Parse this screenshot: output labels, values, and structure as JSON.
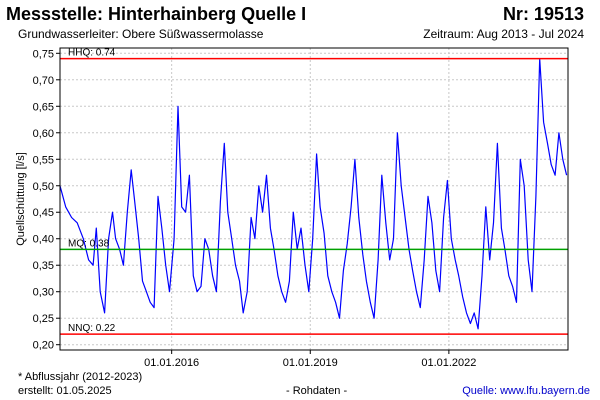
{
  "header": {
    "station": "Messstelle: Hinterhainberg Quelle I",
    "number": "Nr: 19513",
    "aquifer": "Grundwasserleiter:   Obere Süßwassermolasse",
    "period": "Zeitraum: Aug 2013 - Jul 2024"
  },
  "footer": {
    "note": "* Abflussjahr (2012-2023)",
    "created": "erstellt:  01.05.2025",
    "raw": "- Rohdaten -",
    "source": "Quelle: www.lfu.bayern.de"
  },
  "colors": {
    "series": "#0000ff",
    "hhq": "#ff0000",
    "mq": "#00a000",
    "nnq": "#ff0000",
    "grid": "#c8c8c8"
  },
  "chart_data": {
    "type": "line",
    "ylabel": "Quellschüttung [l/s]",
    "ylim": [
      0.19,
      0.76
    ],
    "yticks": [
      "0,20",
      "0,25",
      "0,30",
      "0,35",
      "0,40",
      "0,45",
      "0,50",
      "0,55",
      "0,60",
      "0,65",
      "0,70",
      "0,75"
    ],
    "ytick_values": [
      0.2,
      0.25,
      0.3,
      0.35,
      0.4,
      0.45,
      0.5,
      0.55,
      0.6,
      0.65,
      0.7,
      0.75
    ],
    "xlim": [
      "2013-08-01",
      "2024-07-31"
    ],
    "xticks": [
      "01.01.2016",
      "01.01.2019",
      "01.01.2022"
    ],
    "xtick_dates": [
      "2016-01-01",
      "2019-01-01",
      "2022-01-01"
    ],
    "grid": true,
    "reference_lines": [
      {
        "label": "HHQ: 0.74",
        "value": 0.74
      },
      {
        "label": "MQ: 0.38",
        "value": 0.38
      },
      {
        "label": "NNQ: 0.22",
        "value": 0.22
      }
    ],
    "series": [
      {
        "x": [
          "2013-08-01",
          "2013-09-15",
          "2013-11-01",
          "2013-12-15",
          "2014-02-01",
          "2014-03-15",
          "2014-04-20",
          "2014-05-15",
          "2014-06-15",
          "2014-07-20",
          "2014-08-20",
          "2014-09-20",
          "2014-10-15",
          "2014-11-15",
          "2014-12-15",
          "2015-01-15",
          "2015-02-15",
          "2015-03-15",
          "2015-04-15",
          "2015-05-15",
          "2015-06-15",
          "2015-07-15",
          "2015-08-15",
          "2015-09-15",
          "2015-10-15",
          "2015-11-15",
          "2015-12-15",
          "2016-01-20",
          "2016-02-20",
          "2016-03-20",
          "2016-04-20",
          "2016-05-20",
          "2016-06-20",
          "2016-07-20",
          "2016-08-20",
          "2016-09-20",
          "2016-10-20",
          "2016-11-20",
          "2016-12-20",
          "2017-01-20",
          "2017-02-20",
          "2017-03-20",
          "2017-04-20",
          "2017-05-20",
          "2017-06-20",
          "2017-07-20",
          "2017-08-20",
          "2017-09-20",
          "2017-10-20",
          "2017-11-20",
          "2017-12-20",
          "2018-01-20",
          "2018-02-20",
          "2018-03-20",
          "2018-04-20",
          "2018-05-20",
          "2018-06-20",
          "2018-07-20",
          "2018-08-20",
          "2018-09-20",
          "2018-10-20",
          "2018-11-20",
          "2018-12-20",
          "2019-01-20",
          "2019-02-20",
          "2019-03-20",
          "2019-04-20",
          "2019-05-20",
          "2019-06-20",
          "2019-07-20",
          "2019-08-20",
          "2019-09-20",
          "2019-10-20",
          "2019-11-20",
          "2019-12-20",
          "2020-01-20",
          "2020-02-20",
          "2020-03-20",
          "2020-04-20",
          "2020-05-20",
          "2020-06-20",
          "2020-07-20",
          "2020-08-20",
          "2020-09-20",
          "2020-10-20",
          "2020-11-20",
          "2020-12-20",
          "2021-01-20",
          "2021-02-20",
          "2021-03-20",
          "2021-04-20",
          "2021-05-20",
          "2021-06-20",
          "2021-07-20",
          "2021-08-20",
          "2021-09-20",
          "2021-10-20",
          "2021-11-20",
          "2021-12-20",
          "2022-01-20",
          "2022-02-20",
          "2022-03-20",
          "2022-04-20",
          "2022-05-20",
          "2022-06-20",
          "2022-07-20",
          "2022-08-20",
          "2022-09-20",
          "2022-10-20",
          "2022-11-20",
          "2022-12-20",
          "2023-01-20",
          "2023-02-20",
          "2023-03-20",
          "2023-04-20",
          "2023-05-20",
          "2023-06-20",
          "2023-07-20",
          "2023-08-20",
          "2023-09-20",
          "2023-10-20",
          "2023-11-20",
          "2023-12-20",
          "2024-01-20",
          "2024-02-20",
          "2024-03-20",
          "2024-04-20",
          "2024-05-20",
          "2024-06-20",
          "2024-07-20"
        ],
        "y": [
          0.5,
          0.46,
          0.44,
          0.43,
          0.4,
          0.36,
          0.35,
          0.42,
          0.3,
          0.26,
          0.4,
          0.45,
          0.4,
          0.38,
          0.35,
          0.45,
          0.53,
          0.47,
          0.4,
          0.32,
          0.3,
          0.28,
          0.27,
          0.48,
          0.42,
          0.35,
          0.3,
          0.4,
          0.65,
          0.46,
          0.45,
          0.52,
          0.33,
          0.3,
          0.31,
          0.4,
          0.38,
          0.33,
          0.3,
          0.47,
          0.58,
          0.45,
          0.4,
          0.35,
          0.32,
          0.26,
          0.3,
          0.44,
          0.4,
          0.5,
          0.45,
          0.52,
          0.42,
          0.38,
          0.33,
          0.3,
          0.28,
          0.32,
          0.45,
          0.38,
          0.42,
          0.35,
          0.3,
          0.4,
          0.56,
          0.46,
          0.41,
          0.33,
          0.3,
          0.28,
          0.25,
          0.34,
          0.39,
          0.46,
          0.55,
          0.44,
          0.37,
          0.32,
          0.28,
          0.25,
          0.36,
          0.52,
          0.43,
          0.36,
          0.4,
          0.6,
          0.5,
          0.44,
          0.38,
          0.34,
          0.3,
          0.27,
          0.36,
          0.48,
          0.43,
          0.34,
          0.3,
          0.44,
          0.51,
          0.4,
          0.36,
          0.33,
          0.29,
          0.26,
          0.24,
          0.26,
          0.23,
          0.33,
          0.46,
          0.36,
          0.43,
          0.58,
          0.42,
          0.38,
          0.33,
          0.31,
          0.28,
          0.55,
          0.5,
          0.36,
          0.3,
          0.48,
          0.74,
          0.62,
          0.58,
          0.54,
          0.52,
          0.6,
          0.55,
          0.52
        ]
      }
    ]
  }
}
